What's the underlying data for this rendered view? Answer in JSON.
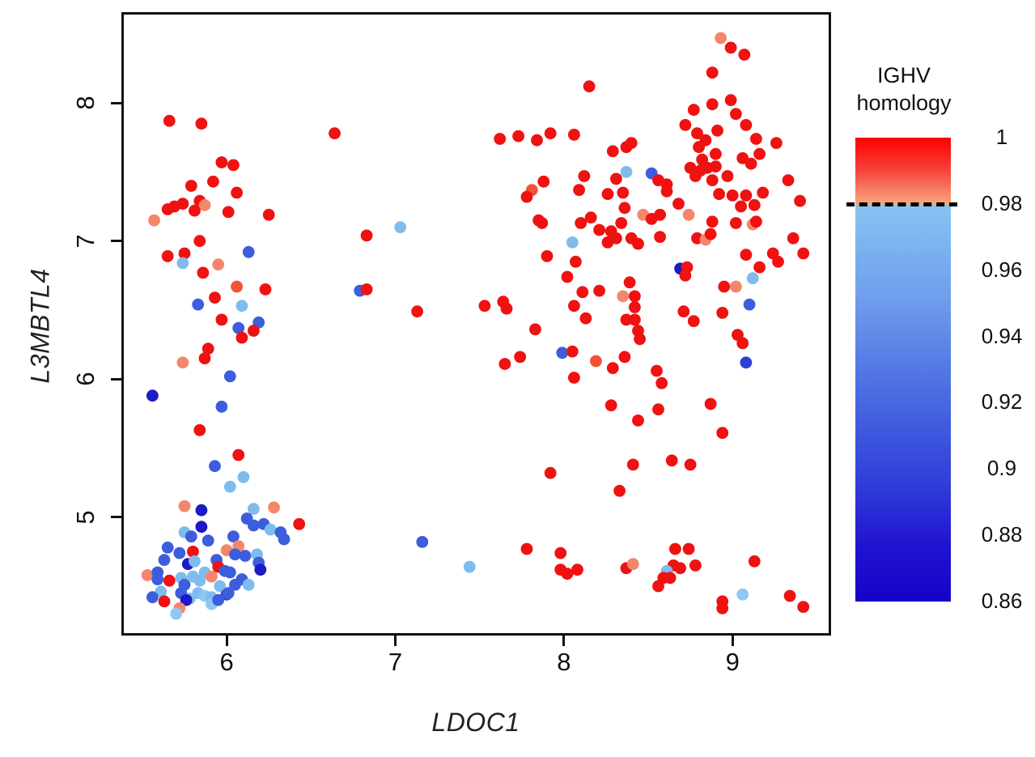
{
  "figure": {
    "background": "#ffffff"
  },
  "axes": {
    "x_title": "LDOC1",
    "y_title": "L3MBTL4"
  },
  "legend": {
    "title_line1": "IGHV",
    "title_line2": "homology",
    "range_min": 0.86,
    "range_max": 1,
    "threshold_value": 0.98,
    "tick_labels": [
      "1",
      "0.98",
      "0.96",
      "0.94",
      "0.92",
      "0.9",
      "0.88",
      "0.86"
    ],
    "tick_values": [
      1,
      0.98,
      0.96,
      0.94,
      0.92,
      0.9,
      0.88,
      0.86
    ],
    "gradient_stops": [
      [
        "#FE0000",
        0
      ],
      [
        "#F5423A",
        7
      ],
      [
        "#F8A77E",
        14.3
      ],
      [
        "#87C3F1",
        14.7
      ],
      [
        "#6E9DEC",
        35
      ],
      [
        "#4A6CE2",
        55
      ],
      [
        "#2F3DD8",
        75
      ],
      [
        "#2114D0",
        88
      ],
      [
        "#1503C9",
        100
      ]
    ]
  },
  "chart_data": {
    "type": "scatter",
    "title": "",
    "xlabel": "LDOC1",
    "ylabel": "L3MBTL4",
    "xlim": [
      5.39,
      9.57
    ],
    "ylim": [
      4.16,
      8.64
    ],
    "x_ticks": [
      6,
      7,
      8,
      9
    ],
    "y_ticks": [
      5,
      6,
      7,
      8
    ],
    "grid": false,
    "legend_position": "right",
    "color_scale": {
      "label": "IGHV homology",
      "min": 0.86,
      "max": 1,
      "threshold": 0.98
    },
    "palette": {
      "r": "#F01111",
      "o": "#F25335",
      "s": "#F4876B",
      "c": "#8FC8F2",
      "l": "#7FBCEE",
      "b": "#3C5EDC",
      "m": "#2B41D4",
      "d": "#1B1BC8"
    },
    "point_radius": 7.4,
    "points": [
      [
        5.66,
        7.87,
        "r"
      ],
      [
        5.85,
        7.85,
        "r"
      ],
      [
        6.64,
        7.78,
        "r"
      ],
      [
        5.97,
        7.57,
        "r"
      ],
      [
        6.04,
        7.55,
        "r"
      ],
      [
        5.79,
        7.4,
        "r"
      ],
      [
        5.92,
        7.43,
        "r"
      ],
      [
        6.06,
        7.35,
        "r"
      ],
      [
        5.84,
        7.29,
        "r"
      ],
      [
        5.69,
        7.25,
        "r"
      ],
      [
        5.74,
        7.27,
        "r"
      ],
      [
        5.87,
        7.26,
        "s"
      ],
      [
        5.81,
        7.22,
        "r"
      ],
      [
        5.65,
        7.23,
        "r"
      ],
      [
        6.01,
        7.21,
        "r"
      ],
      [
        6.25,
        7.19,
        "r"
      ],
      [
        5.57,
        7.15,
        "s"
      ],
      [
        5.84,
        7.0,
        "r"
      ],
      [
        5.65,
        6.89,
        "r"
      ],
      [
        5.75,
        6.91,
        "r"
      ],
      [
        5.74,
        6.84,
        "l"
      ],
      [
        5.95,
        6.83,
        "s"
      ],
      [
        6.13,
        6.92,
        "b"
      ],
      [
        5.86,
        6.77,
        "r"
      ],
      [
        6.06,
        6.67,
        "o"
      ],
      [
        6.23,
        6.65,
        "r"
      ],
      [
        5.93,
        6.59,
        "r"
      ],
      [
        5.83,
        6.54,
        "b"
      ],
      [
        6.09,
        6.53,
        "l"
      ],
      [
        5.97,
        6.43,
        "r"
      ],
      [
        6.19,
        6.41,
        "b"
      ],
      [
        6.79,
        6.64,
        "b"
      ],
      [
        6.07,
        6.37,
        "b"
      ],
      [
        6.09,
        6.3,
        "r"
      ],
      [
        6.16,
        6.35,
        "r"
      ],
      [
        5.89,
        6.22,
        "r"
      ],
      [
        5.87,
        6.15,
        "r"
      ],
      [
        5.74,
        6.12,
        "s"
      ],
      [
        6.02,
        6.02,
        "b"
      ],
      [
        5.56,
        5.88,
        "d"
      ],
      [
        5.97,
        5.8,
        "b"
      ],
      [
        5.84,
        5.63,
        "r"
      ],
      [
        6.07,
        5.45,
        "r"
      ],
      [
        5.93,
        5.37,
        "b"
      ],
      [
        6.1,
        5.29,
        "l"
      ],
      [
        6.02,
        5.22,
        "l"
      ],
      [
        5.75,
        5.08,
        "s"
      ],
      [
        5.85,
        5.05,
        "d"
      ],
      [
        6.16,
        5.06,
        "l"
      ],
      [
        6.28,
        5.07,
        "s"
      ],
      [
        6.12,
        4.99,
        "b"
      ],
      [
        6.16,
        4.94,
        "b"
      ],
      [
        6.22,
        4.95,
        "b"
      ],
      [
        6.26,
        4.91,
        "l"
      ],
      [
        6.43,
        4.95,
        "r"
      ],
      [
        6.32,
        4.89,
        "b"
      ],
      [
        6.34,
        4.84,
        "b"
      ],
      [
        5.85,
        4.93,
        "d"
      ],
      [
        5.75,
        4.89,
        "l"
      ],
      [
        5.79,
        4.86,
        "b"
      ],
      [
        5.89,
        4.83,
        "b"
      ],
      [
        5.65,
        4.78,
        "b"
      ],
      [
        5.72,
        4.74,
        "b"
      ],
      [
        5.63,
        4.69,
        "b"
      ],
      [
        5.8,
        4.75,
        "r"
      ],
      [
        6.04,
        4.86,
        "b"
      ],
      [
        6.0,
        4.76,
        "s"
      ],
      [
        6.07,
        4.79,
        "s"
      ],
      [
        6.05,
        4.73,
        "b"
      ],
      [
        6.11,
        4.72,
        "b"
      ],
      [
        6.18,
        4.73,
        "l"
      ],
      [
        5.77,
        4.66,
        "d"
      ],
      [
        5.81,
        4.68,
        "l"
      ],
      [
        5.94,
        4.69,
        "b"
      ],
      [
        5.95,
        4.64,
        "r"
      ],
      [
        5.87,
        4.6,
        "l"
      ],
      [
        5.91,
        4.57,
        "s"
      ],
      [
        5.99,
        4.61,
        "b"
      ],
      [
        6.02,
        4.6,
        "b"
      ],
      [
        5.53,
        4.58,
        "s"
      ],
      [
        5.59,
        4.6,
        "b"
      ],
      [
        5.59,
        4.55,
        "b"
      ],
      [
        5.66,
        4.54,
        "r"
      ],
      [
        5.73,
        4.56,
        "l"
      ],
      [
        5.75,
        4.51,
        "b"
      ],
      [
        5.8,
        4.57,
        "l"
      ],
      [
        5.84,
        4.54,
        "l"
      ],
      [
        6.09,
        4.55,
        "b"
      ],
      [
        6.13,
        4.51,
        "l"
      ],
      [
        6.05,
        4.51,
        "b"
      ],
      [
        6.19,
        4.67,
        "b"
      ],
      [
        6.2,
        4.62,
        "d"
      ],
      [
        5.61,
        4.46,
        "l"
      ],
      [
        5.56,
        4.42,
        "b"
      ],
      [
        5.63,
        4.39,
        "r"
      ],
      [
        5.73,
        4.45,
        "b"
      ],
      [
        5.78,
        4.41,
        "l"
      ],
      [
        5.76,
        4.4,
        "d"
      ],
      [
        5.72,
        4.34,
        "s"
      ],
      [
        5.7,
        4.3,
        "c"
      ],
      [
        5.83,
        4.45,
        "l"
      ],
      [
        5.87,
        4.43,
        "c"
      ],
      [
        5.91,
        4.42,
        "l"
      ],
      [
        5.96,
        4.5,
        "l"
      ],
      [
        6.0,
        4.44,
        "m"
      ],
      [
        5.91,
        4.37,
        "c"
      ],
      [
        5.95,
        4.4,
        "b"
      ],
      [
        6.01,
        4.45,
        "b"
      ],
      [
        8.15,
        8.12,
        "r"
      ],
      [
        7.62,
        7.74,
        "r"
      ],
      [
        7.73,
        7.76,
        "r"
      ],
      [
        7.84,
        7.73,
        "r"
      ],
      [
        7.92,
        7.78,
        "r"
      ],
      [
        8.06,
        7.77,
        "r"
      ],
      [
        7.88,
        7.43,
        "r"
      ],
      [
        7.81,
        7.37,
        "o"
      ],
      [
        7.78,
        7.32,
        "r"
      ],
      [
        8.12,
        7.47,
        "r"
      ],
      [
        8.09,
        7.37,
        "r"
      ],
      [
        7.85,
        7.15,
        "r"
      ],
      [
        7.87,
        7.13,
        "r"
      ],
      [
        8.1,
        7.13,
        "r"
      ],
      [
        8.16,
        7.17,
        "r"
      ],
      [
        8.21,
        7.08,
        "r"
      ],
      [
        7.03,
        7.1,
        "l"
      ],
      [
        6.83,
        7.04,
        "r"
      ],
      [
        8.05,
        6.99,
        "l"
      ],
      [
        7.9,
        6.89,
        "r"
      ],
      [
        8.07,
        6.85,
        "r"
      ],
      [
        8.02,
        6.74,
        "r"
      ],
      [
        8.11,
        6.63,
        "r"
      ],
      [
        8.06,
        6.53,
        "r"
      ],
      [
        7.64,
        6.56,
        "r"
      ],
      [
        7.66,
        6.51,
        "r"
      ],
      [
        7.53,
        6.53,
        "r"
      ],
      [
        7.13,
        6.49,
        "r"
      ],
      [
        8.13,
        6.44,
        "r"
      ],
      [
        6.83,
        6.65,
        "r"
      ],
      [
        8.93,
        8.47,
        "s"
      ],
      [
        8.99,
        8.4,
        "r"
      ],
      [
        9.07,
        8.35,
        "r"
      ],
      [
        8.88,
        8.22,
        "r"
      ],
      [
        8.88,
        7.99,
        "r"
      ],
      [
        8.99,
        8.02,
        "r"
      ],
      [
        8.77,
        7.95,
        "r"
      ],
      [
        9.02,
        7.92,
        "r"
      ],
      [
        8.72,
        7.84,
        "r"
      ],
      [
        9.08,
        7.84,
        "r"
      ],
      [
        8.79,
        7.78,
        "r"
      ],
      [
        8.91,
        7.8,
        "r"
      ],
      [
        9.14,
        7.74,
        "r"
      ],
      [
        9.26,
        7.71,
        "r"
      ],
      [
        8.84,
        7.73,
        "r"
      ],
      [
        8.8,
        7.68,
        "r"
      ],
      [
        9.16,
        7.63,
        "r"
      ],
      [
        8.37,
        7.68,
        "r"
      ],
      [
        8.4,
        7.71,
        "r"
      ],
      [
        8.29,
        7.65,
        "r"
      ],
      [
        8.82,
        7.59,
        "r"
      ],
      [
        8.9,
        7.63,
        "r"
      ],
      [
        9.06,
        7.6,
        "r"
      ],
      [
        8.75,
        7.53,
        "r"
      ],
      [
        8.81,
        7.51,
        "r"
      ],
      [
        8.85,
        7.53,
        "r"
      ],
      [
        8.9,
        7.54,
        "r"
      ],
      [
        8.78,
        7.47,
        "r"
      ],
      [
        8.97,
        7.47,
        "r"
      ],
      [
        8.88,
        7.44,
        "r"
      ],
      [
        9.11,
        7.56,
        "r"
      ],
      [
        8.37,
        7.5,
        "l"
      ],
      [
        8.52,
        7.49,
        "b"
      ],
      [
        8.56,
        7.44,
        "r"
      ],
      [
        8.31,
        7.45,
        "r"
      ],
      [
        8.61,
        7.41,
        "r"
      ],
      [
        8.61,
        7.36,
        "r"
      ],
      [
        8.26,
        7.34,
        "r"
      ],
      [
        8.35,
        7.35,
        "r"
      ],
      [
        9.18,
        7.35,
        "r"
      ],
      [
        9.33,
        7.44,
        "r"
      ],
      [
        8.36,
        7.24,
        "r"
      ],
      [
        8.68,
        7.27,
        "r"
      ],
      [
        8.92,
        7.34,
        "r"
      ],
      [
        9.0,
        7.33,
        "r"
      ],
      [
        9.08,
        7.33,
        "r"
      ],
      [
        9.05,
        7.25,
        "r"
      ],
      [
        9.13,
        7.26,
        "r"
      ],
      [
        9.4,
        7.29,
        "r"
      ],
      [
        8.34,
        7.13,
        "r"
      ],
      [
        8.47,
        7.19,
        "s"
      ],
      [
        8.52,
        7.16,
        "r"
      ],
      [
        8.57,
        7.19,
        "r"
      ],
      [
        8.74,
        7.19,
        "s"
      ],
      [
        8.88,
        7.14,
        "r"
      ],
      [
        9.02,
        7.13,
        "r"
      ],
      [
        9.12,
        7.12,
        "s"
      ],
      [
        9.14,
        7.14,
        "r"
      ],
      [
        8.28,
        7.07,
        "r"
      ],
      [
        8.31,
        7.02,
        "r"
      ],
      [
        8.26,
        6.99,
        "r"
      ],
      [
        8.4,
        7.02,
        "r"
      ],
      [
        8.44,
        6.98,
        "r"
      ],
      [
        8.57,
        7.03,
        "r"
      ],
      [
        8.79,
        7.02,
        "r"
      ],
      [
        8.84,
        7.01,
        "s"
      ],
      [
        8.87,
        7.05,
        "r"
      ],
      [
        9.36,
        7.02,
        "r"
      ],
      [
        9.42,
        6.91,
        "r"
      ],
      [
        9.08,
        6.9,
        "r"
      ],
      [
        9.24,
        6.91,
        "r"
      ],
      [
        9.27,
        6.85,
        "r"
      ],
      [
        9.16,
        6.81,
        "r"
      ],
      [
        8.69,
        6.8,
        "d"
      ],
      [
        8.73,
        6.81,
        "r"
      ],
      [
        8.72,
        6.75,
        "r"
      ],
      [
        9.12,
        6.73,
        "l"
      ],
      [
        8.95,
        6.67,
        "r"
      ],
      [
        9.02,
        6.67,
        "s"
      ],
      [
        8.39,
        6.7,
        "r"
      ],
      [
        8.35,
        6.6,
        "s"
      ],
      [
        8.42,
        6.6,
        "r"
      ],
      [
        8.42,
        6.52,
        "r"
      ],
      [
        9.1,
        6.54,
        "b"
      ],
      [
        8.94,
        6.48,
        "r"
      ],
      [
        8.71,
        6.49,
        "r"
      ],
      [
        8.77,
        6.42,
        "r"
      ],
      [
        8.37,
        6.43,
        "r"
      ],
      [
        8.42,
        6.43,
        "r"
      ],
      [
        8.21,
        6.64,
        "r"
      ],
      [
        7.83,
        6.36,
        "r"
      ],
      [
        7.99,
        6.19,
        "b"
      ],
      [
        8.05,
        6.2,
        "r"
      ],
      [
        8.19,
        6.13,
        "o"
      ],
      [
        7.65,
        6.11,
        "r"
      ],
      [
        7.74,
        6.16,
        "r"
      ],
      [
        8.06,
        6.01,
        "r"
      ],
      [
        7.92,
        5.32,
        "r"
      ],
      [
        7.16,
        4.82,
        "b"
      ],
      [
        7.44,
        4.64,
        "l"
      ],
      [
        7.78,
        4.77,
        "r"
      ],
      [
        7.98,
        4.74,
        "r"
      ],
      [
        7.98,
        4.62,
        "r"
      ],
      [
        8.02,
        4.59,
        "r"
      ],
      [
        8.08,
        4.62,
        "r"
      ],
      [
        8.44,
        6.35,
        "r"
      ],
      [
        8.45,
        6.29,
        "r"
      ],
      [
        9.03,
        6.32,
        "r"
      ],
      [
        9.06,
        6.26,
        "r"
      ],
      [
        8.36,
        6.16,
        "r"
      ],
      [
        8.29,
        6.08,
        "r"
      ],
      [
        8.55,
        6.06,
        "r"
      ],
      [
        8.58,
        5.97,
        "r"
      ],
      [
        9.08,
        6.12,
        "m"
      ],
      [
        8.28,
        5.81,
        "r"
      ],
      [
        8.56,
        5.78,
        "r"
      ],
      [
        8.44,
        5.7,
        "r"
      ],
      [
        8.87,
        5.82,
        "r"
      ],
      [
        8.94,
        5.61,
        "r"
      ],
      [
        8.41,
        5.38,
        "r"
      ],
      [
        8.64,
        5.41,
        "r"
      ],
      [
        8.75,
        5.38,
        "r"
      ],
      [
        8.33,
        5.19,
        "r"
      ],
      [
        8.66,
        4.77,
        "r"
      ],
      [
        8.74,
        4.77,
        "r"
      ],
      [
        8.37,
        4.63,
        "r"
      ],
      [
        8.41,
        4.66,
        "s"
      ],
      [
        8.65,
        4.65,
        "r"
      ],
      [
        8.69,
        4.63,
        "r"
      ],
      [
        8.61,
        4.61,
        "l"
      ],
      [
        8.78,
        4.65,
        "r"
      ],
      [
        8.59,
        4.56,
        "r"
      ],
      [
        8.63,
        4.56,
        "r"
      ],
      [
        8.56,
        4.5,
        "r"
      ],
      [
        9.13,
        4.68,
        "r"
      ],
      [
        9.06,
        4.44,
        "c"
      ],
      [
        8.94,
        4.39,
        "r"
      ],
      [
        8.94,
        4.34,
        "r"
      ],
      [
        9.34,
        4.43,
        "r"
      ],
      [
        9.42,
        4.35,
        "r"
      ]
    ]
  }
}
